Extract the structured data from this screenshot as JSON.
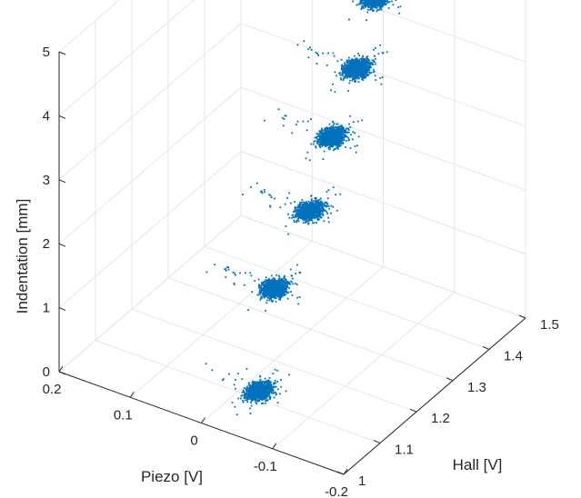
{
  "chart_data": {
    "type": "scatter",
    "title": "",
    "xlabel": "Piezo [V]",
    "ylabel": "Hall [V]",
    "zlabel": "Indentation [mm]",
    "xlim": [
      -0.2,
      0.2
    ],
    "ylim": [
      1,
      1.5
    ],
    "zlim": [
      0,
      5
    ],
    "grid": true,
    "x_ticks": [
      "0.2",
      "0.1",
      "0",
      "-0.1",
      "-0.2"
    ],
    "y_ticks": [
      "1",
      "1.1",
      "1.2",
      "1.3",
      "1.4",
      "1.5"
    ],
    "z_ticks": [
      "0",
      "1",
      "2",
      "3",
      "4",
      "5"
    ],
    "marker_color": "#0072BD",
    "clusters": [
      {
        "indentation": 0,
        "piezo_center": -0.02,
        "hall_center": 1.12,
        "points_approx": 900
      },
      {
        "indentation": 1,
        "piezo_center": 0.01,
        "hall_center": 1.22,
        "points_approx": 1100
      },
      {
        "indentation": 2,
        "piezo_center": -0.01,
        "hall_center": 1.28,
        "points_approx": 1100
      },
      {
        "indentation": 3,
        "piezo_center": -0.02,
        "hall_center": 1.32,
        "points_approx": 1100
      },
      {
        "indentation": 4,
        "piezo_center": -0.04,
        "hall_center": 1.35,
        "points_approx": 1200
      },
      {
        "indentation": 5,
        "piezo_center": -0.05,
        "hall_center": 1.38,
        "points_approx": 1300
      }
    ]
  }
}
